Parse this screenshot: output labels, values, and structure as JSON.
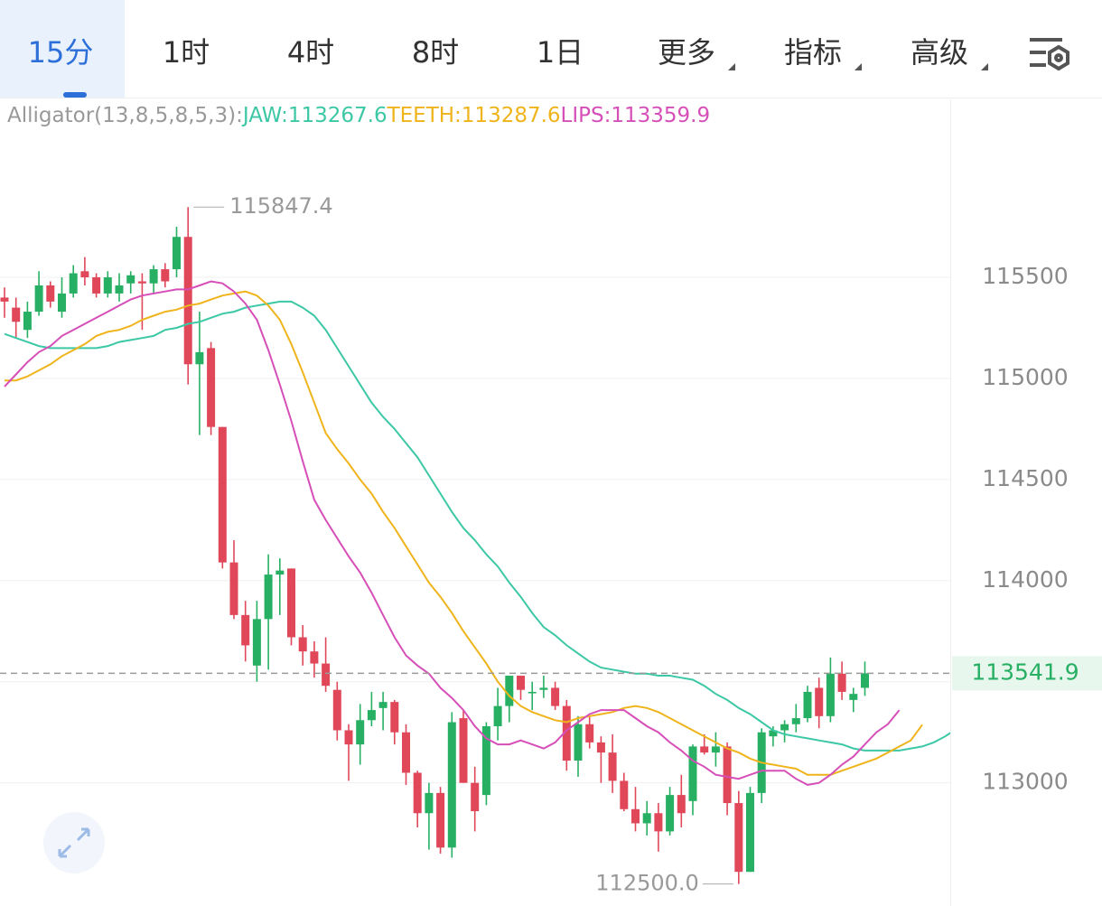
{
  "tabs": [
    "15分",
    "1时",
    "4时",
    "8时",
    "1日",
    "更多",
    "指标",
    "高级"
  ],
  "chart_data": {
    "type": "candlestick",
    "indicator": "Alligator(13,8,5,8,5,3):",
    "up_color": "#27b063",
    "down_color": "#e0485a",
    "open": [
      115400,
      115350,
      115240,
      115330,
      115460,
      115330,
      115420,
      115530,
      115500,
      115420,
      115420,
      115470,
      115480,
      115470,
      115540,
      115540,
      115700,
      115070,
      115150,
      114760,
      114090,
      113830,
      113580,
      113810,
      114030,
      114060,
      113720,
      113650,
      113590,
      113460,
      113260,
      113190,
      113310,
      113370,
      113400,
      113250,
      113050,
      112850,
      112950,
      112680,
      113320,
      113000,
      112940,
      113280,
      113380,
      113530,
      113450,
      113460,
      113470,
      113380,
      113110,
      113290,
      113200,
      113150,
      113010,
      112870,
      112800,
      112850,
      112760,
      112940,
      112910,
      113180,
      113150,
      113180,
      112900,
      112560,
      112950,
      113230,
      113260,
      113290,
      113320,
      113470,
      113330,
      113540,
      113410,
      113470
    ],
    "high": [
      115450,
      115400,
      115380,
      115530,
      115480,
      115500,
      115560,
      115600,
      115520,
      115530,
      115520,
      115530,
      115520,
      115560,
      115570,
      115750,
      115847.4,
      115330,
      115180,
      114760,
      114200,
      113900,
      113900,
      114130,
      114110,
      114060,
      113780,
      113700,
      113720,
      113500,
      113290,
      113390,
      113450,
      113450,
      113410,
      113290,
      113060,
      113000,
      112980,
      113350,
      113360,
      113080,
      113300,
      113470,
      113530,
      113530,
      113500,
      113530,
      113500,
      113410,
      113330,
      113330,
      113230,
      113240,
      113050,
      112980,
      112910,
      112900,
      112980,
      113040,
      113190,
      113240,
      113250,
      113200,
      112960,
      112980,
      113270,
      113280,
      113310,
      113390,
      113480,
      113520,
      113620,
      113600,
      113470,
      113600
    ],
    "low": [
      115300,
      115200,
      115200,
      115310,
      115350,
      115300,
      115400,
      115460,
      115400,
      115400,
      115380,
      115420,
      115240,
      115420,
      115450,
      115500,
      114970,
      114720,
      114720,
      114060,
      113810,
      113600,
      113500,
      113560,
      113830,
      113680,
      113580,
      113520,
      113450,
      113210,
      113010,
      113090,
      113280,
      113260,
      113190,
      112990,
      112780,
      112670,
      112650,
      112630,
      113000,
      112760,
      112890,
      113210,
      113300,
      113410,
      113360,
      113420,
      113360,
      113060,
      113030,
      113170,
      113000,
      112950,
      112860,
      112760,
      112740,
      112660,
      112740,
      112780,
      112840,
      113140,
      113080,
      112840,
      112500,
      112560,
      112900,
      113180,
      113200,
      113250,
      113300,
      113270,
      113300,
      113410,
      113350,
      113430
    ],
    "close": [
      115380,
      115280,
      115330,
      115460,
      115380,
      115420,
      115520,
      115500,
      115420,
      115500,
      115460,
      115510,
      115470,
      115540,
      115480,
      115700,
      115070,
      115130,
      114760,
      114090,
      113830,
      113680,
      113810,
      114030,
      114050,
      113720,
      113650,
      113590,
      113480,
      113260,
      113190,
      113310,
      113360,
      113400,
      113250,
      113050,
      112850,
      112950,
      112680,
      113300,
      113000,
      112860,
      113280,
      113380,
      113530,
      113460,
      113450,
      113470,
      113380,
      113110,
      113290,
      113200,
      113150,
      113010,
      112870,
      112800,
      112850,
      112760,
      112940,
      112850,
      113180,
      113150,
      113180,
      112900,
      112560,
      112950,
      113250,
      113260,
      113290,
      113320,
      113450,
      113330,
      113540,
      113450,
      113440,
      113541.9
    ],
    "low_value_label": "112500.0",
    "series": [
      {
        "name": "JAW:",
        "color": "#3cc8a5",
        "values": [
          115220,
          115200,
          115180,
          115160,
          115150,
          115150,
          115150,
          115150,
          115150,
          115160,
          115180,
          115190,
          115200,
          115210,
          115240,
          115250,
          115270,
          115280,
          115300,
          115320,
          115330,
          115350,
          115360,
          115370,
          115380,
          115380,
          115350,
          115310,
          115240,
          115150,
          115060,
          114970,
          114880,
          114810,
          114750,
          114680,
          114610,
          114520,
          114430,
          114340,
          114260,
          114200,
          114130,
          114070,
          113990,
          113920,
          113840,
          113770,
          113730,
          113680,
          113640,
          113600,
          113570,
          113560,
          113550,
          113540,
          113540,
          113530,
          113530,
          113520,
          113510,
          113480,
          113440,
          113410,
          113370,
          113340,
          113300,
          113260,
          113240,
          113230,
          113220,
          113210,
          113200,
          113190,
          113170,
          113160,
          113160,
          113160,
          113160,
          113170,
          113180,
          113200,
          113230,
          113267.6
        ]
      },
      {
        "name": "TEETH:",
        "color": "#efb41c",
        "values": [
          114990,
          114990,
          115010,
          115040,
          115070,
          115110,
          115140,
          115170,
          115210,
          115230,
          115240,
          115260,
          115290,
          115310,
          115330,
          115340,
          115360,
          115370,
          115390,
          115410,
          115420,
          115430,
          115410,
          115360,
          115290,
          115170,
          115030,
          114880,
          114730,
          114650,
          114580,
          114500,
          114430,
          114340,
          114260,
          114170,
          114080,
          113990,
          113920,
          113840,
          113750,
          113670,
          113590,
          113500,
          113430,
          113380,
          113350,
          113330,
          113310,
          113300,
          113320,
          113330,
          113340,
          113350,
          113370,
          113380,
          113370,
          113350,
          113320,
          113290,
          113260,
          113230,
          113200,
          113170,
          113150,
          113120,
          113100,
          113090,
          113080,
          113070,
          113040,
          113040,
          113040,
          113060,
          113080,
          113100,
          113120,
          113150,
          113180,
          113210,
          113287.6,
          null,
          null,
          null
        ]
      },
      {
        "name": "LIPS:",
        "color": "#d64fb8",
        "values": [
          114960,
          115020,
          115080,
          115130,
          115160,
          115210,
          115240,
          115270,
          115300,
          115330,
          115360,
          115390,
          115410,
          115420,
          115430,
          115440,
          115440,
          115460,
          115480,
          115470,
          115430,
          115370,
          115290,
          115140,
          114970,
          114790,
          114590,
          114400,
          114300,
          114210,
          114120,
          114040,
          113940,
          113830,
          113720,
          113630,
          113580,
          113540,
          113470,
          113420,
          113360,
          113280,
          113220,
          113190,
          113190,
          113210,
          113190,
          113170,
          113200,
          113260,
          113300,
          113340,
          113360,
          113360,
          113360,
          113320,
          113280,
          113250,
          113200,
          113160,
          113110,
          113080,
          113040,
          113030,
          113020,
          113040,
          113060,
          113060,
          113060,
          113020,
          112990,
          113000,
          113040,
          113090,
          113130,
          113190,
          113250,
          113290,
          113359.9,
          null,
          null,
          null,
          null,
          null
        ]
      }
    ],
    "ylim": [
      112400,
      116380
    ],
    "yticks": [
      113000,
      113500,
      114000,
      114500,
      115000,
      115500
    ],
    "grid": true
  }
}
